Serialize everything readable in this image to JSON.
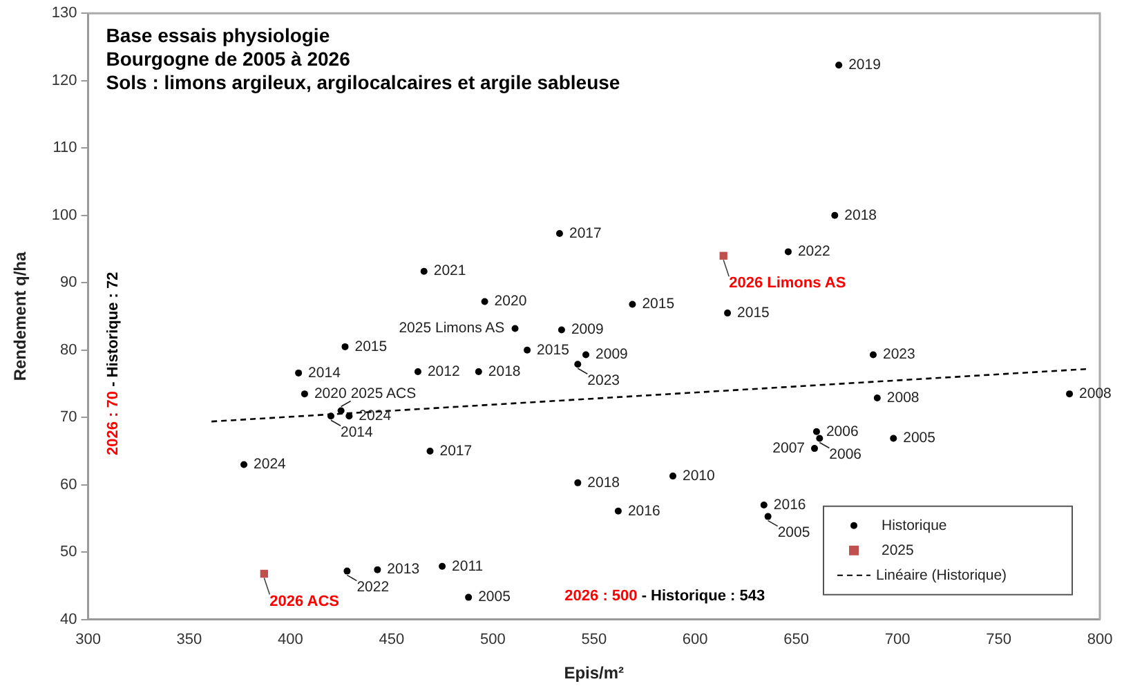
{
  "chart_data": {
    "type": "scatter",
    "title": "Base essais physiologie",
    "subtitle": "Bourgogne de 2005 à 2026\nSols : limons argileux, argilocalcaires et argile sableuse",
    "xlabel": "Epis/m²",
    "ylabel": "Rendement q/ha",
    "xlim": [
      300,
      800
    ],
    "xticks": [
      300,
      350,
      400,
      450,
      500,
      550,
      600,
      650,
      700,
      750,
      800
    ],
    "ylim": [
      40,
      130
    ],
    "yticks": [
      40,
      50,
      60,
      70,
      80,
      90,
      100,
      110,
      120,
      130
    ],
    "grid": false,
    "legend": "bottom right",
    "annotations": [
      "2026 : 70 - Historique : 72",
      "2026 : 500 - Historique : 543",
      {
        "text": "2019",
        "x": 671,
        "y": 122.3
      },
      {
        "text": "2017",
        "x": 533,
        "y": 97.3
      },
      {
        "text": "2021",
        "x": 466,
        "y": 91.7
      },
      {
        "text": "2020",
        "x": 496,
        "y": 87.2
      },
      {
        "text": "2025 Limons AS",
        "x": 511,
        "y": 83.2
      },
      {
        "text": "2015",
        "x": 569,
        "y": 86.8
      },
      {
        "text": "2009",
        "x": 534,
        "y": 83.0
      },
      {
        "text": "2015",
        "x": 517,
        "y": 80.0
      },
      {
        "text": "2009",
        "x": 546,
        "y": 79.3
      },
      {
        "text": "2023",
        "x": 542,
        "y": 77.9
      },
      {
        "text": "2015",
        "x": 427,
        "y": 80.5
      },
      {
        "text": "2014",
        "x": 404,
        "y": 76.6
      },
      {
        "text": "2012",
        "x": 463,
        "y": 76.8
      },
      {
        "text": "2018",
        "x": 493,
        "y": 76.8
      },
      {
        "text": "2020",
        "x": 407,
        "y": 73.5
      },
      {
        "text": "2025 ACS",
        "x": 425,
        "y": 71.0
      },
      {
        "text": "2014",
        "x": 420,
        "y": 70.2
      },
      {
        "text": "2024",
        "x": 429,
        "y": 70.2
      },
      {
        "text": "2017",
        "x": 469,
        "y": 65.0
      },
      {
        "text": "2024",
        "x": 377,
        "y": 63.0
      },
      {
        "text": "2018",
        "x": 542,
        "y": 60.3
      },
      {
        "text": "2016",
        "x": 562,
        "y": 56.1
      },
      {
        "text": "2013",
        "x": 443,
        "y": 47.4
      },
      {
        "text": "2022",
        "x": 428,
        "y": 47.2
      },
      {
        "text": "2011",
        "x": 475,
        "y": 47.9
      },
      {
        "text": "2005",
        "x": 488,
        "y": 43.3
      },
      {
        "text": "2010",
        "x": 589,
        "y": 61.3
      },
      {
        "text": "2016",
        "x": 634,
        "y": 57.0
      },
      {
        "text": "2005",
        "x": 636,
        "y": 55.3
      },
      {
        "text": "2006",
        "x": 660,
        "y": 67.9
      },
      {
        "text": "2006",
        "x": 661.5,
        "y": 66.9
      },
      {
        "text": "2007",
        "x": 659,
        "y": 65.4
      },
      {
        "text": "2005",
        "x": 698,
        "y": 66.9
      },
      {
        "text": "2008",
        "x": 690,
        "y": 72.9
      },
      {
        "text": "2023",
        "x": 688,
        "y": 79.3
      },
      {
        "text": "2008",
        "x": 785,
        "y": 73.5
      },
      {
        "text": "2015",
        "x": 616,
        "y": 85.5
      },
      {
        "text": "2022",
        "x": 646,
        "y": 94.6
      },
      {
        "text": "2018",
        "x": 669,
        "y": 100
      },
      {
        "text": "2026 Limons AS",
        "x": 614,
        "y": 94.0
      },
      {
        "text": "2026 ACS",
        "x": 387,
        "y": 46.8
      }
    ],
    "series": [
      {
        "name": "Historique",
        "marker": "circle",
        "color": "#000000",
        "x": [
          671,
          533,
          466,
          496,
          511,
          569,
          534,
          517,
          546,
          542,
          427,
          404,
          463,
          493,
          407,
          425,
          420,
          429,
          469,
          377,
          542,
          562,
          443,
          428,
          475,
          488,
          589,
          634,
          636,
          660,
          661.5,
          659,
          698,
          690,
          688,
          785,
          616,
          646,
          669
        ],
        "values": [
          122.3,
          97.3,
          91.7,
          87.2,
          83.2,
          86.8,
          83.0,
          80.0,
          79.3,
          77.9,
          80.5,
          76.6,
          76.8,
          76.8,
          73.5,
          71.0,
          70.2,
          70.2,
          65.0,
          63.0,
          60.3,
          56.1,
          47.4,
          47.2,
          47.9,
          43.3,
          61.3,
          57.0,
          55.3,
          67.9,
          66.9,
          65.4,
          66.9,
          72.9,
          79.3,
          73.5,
          85.5,
          94.6,
          100
        ]
      },
      {
        "name": "2025",
        "marker": "square",
        "color": "#c0504d",
        "x": [
          614,
          387
        ],
        "values": [
          94.0,
          46.8
        ]
      },
      {
        "name": "Linéaire (Historique)",
        "type": "line",
        "line_style": "dashed",
        "color": "#000000",
        "x": [
          361,
          794
        ],
        "values": [
          69.4,
          77.2
        ]
      }
    ]
  }
}
